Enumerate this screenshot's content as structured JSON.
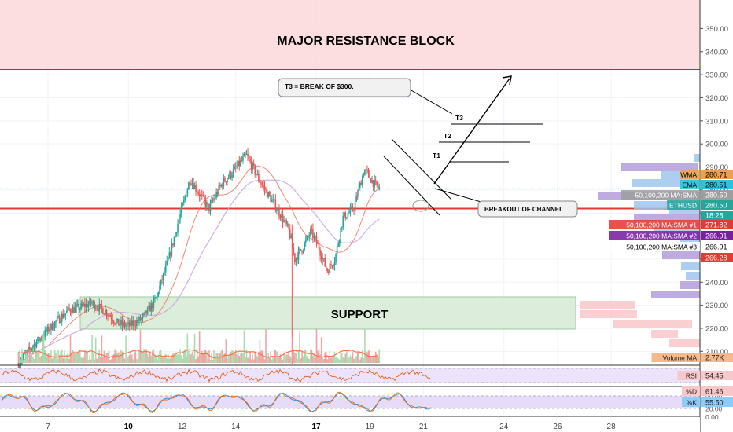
{
  "chart_data": {
    "type": "candlestick",
    "symbol": "ETHUSD",
    "y_axis": {
      "ticks": [
        "350.00",
        "340.00",
        "330.00",
        "320.00",
        "310.00",
        "300.00",
        "290.00",
        "280.00",
        "270.00",
        "260.00",
        "250.00",
        "240.00",
        "230.00",
        "220.00",
        "210.00",
        "200.00"
      ],
      "range": [
        200,
        355
      ]
    },
    "x_axis": {
      "ticks": [
        "7",
        "10",
        "12",
        "14",
        "17",
        "19",
        "21",
        "24",
        "26",
        "28"
      ],
      "bold_ticks": [
        "10",
        "17"
      ],
      "tick_days": [
        7,
        10,
        12,
        14,
        17,
        19,
        21,
        24,
        26,
        28
      ]
    },
    "price_path": [
      [
        5.9,
        205
      ],
      [
        6.4,
        212
      ],
      [
        6.9,
        218
      ],
      [
        7.4,
        224
      ],
      [
        7.8,
        228
      ],
      [
        8.2,
        229
      ],
      [
        8.6,
        231
      ],
      [
        9.2,
        227
      ],
      [
        9.6,
        222
      ],
      [
        10.0,
        221
      ],
      [
        10.5,
        224
      ],
      [
        11.0,
        232
      ],
      [
        11.5,
        250
      ],
      [
        11.9,
        268
      ],
      [
        12.3,
        285
      ],
      [
        12.6,
        279
      ],
      [
        13.0,
        272
      ],
      [
        13.5,
        283
      ],
      [
        13.9,
        288
      ],
      [
        14.4,
        295
      ],
      [
        14.8,
        286
      ],
      [
        15.2,
        278
      ],
      [
        15.5,
        273
      ],
      [
        16.0,
        262
      ],
      [
        16.2,
        250
      ],
      [
        16.5,
        255
      ],
      [
        16.8,
        262
      ],
      [
        17.1,
        255
      ],
      [
        17.4,
        245
      ],
      [
        17.7,
        250
      ],
      [
        18.0,
        268
      ],
      [
        18.4,
        272
      ],
      [
        18.8,
        289
      ],
      [
        19.2,
        282
      ],
      [
        19.4,
        280.5
      ]
    ],
    "series": [
      {
        "name": "WMA",
        "value": "280.71",
        "color": "#f0a04b"
      },
      {
        "name": "EMA",
        "value": "280.51",
        "color": "#26c6da"
      },
      {
        "name": "50,100,200 MA:SMA",
        "value": "280.50",
        "color": "#bdbdbd"
      },
      {
        "name": "ETHUSD",
        "value": "280.50",
        "color": "#26a69a"
      },
      {
        "name": "",
        "value": "18:28",
        "color": "#26a69a"
      },
      {
        "name": "50,100,200 MA:SMA #1",
        "value": "271.82",
        "color": "#e53935"
      },
      {
        "name": "50,100,200 MA:SMA #2",
        "value": "266.91",
        "color": "#7b1fa2"
      },
      {
        "name": "50,100,200 MA:SMA #3",
        "value": "266.91",
        "color": "#ffffff"
      },
      {
        "name": "",
        "value": "266.28",
        "color": "#e53935"
      }
    ],
    "indicator_labels": [
      {
        "name": "Volume MA",
        "value": "2.77K"
      },
      {
        "name": "RSI",
        "value": "54.45"
      },
      {
        "name": "%D",
        "value": "61.46"
      },
      {
        "name": "%K",
        "value": "55.50"
      }
    ],
    "osc_ticks": [
      "80.00",
      "20.00",
      "0.00"
    ],
    "annotations": {
      "resistance_zone": "MAJOR RESISTANCE BLOCK",
      "support_zone": "SUPPORT",
      "callout_t3": "T3 = BREAK OF $300.",
      "callout_breakout": "BREAKOUT OF CHANNEL",
      "targets": [
        "T1",
        "T2",
        "T3"
      ]
    },
    "colors": {
      "up": "#26a69a",
      "down": "#ef5350",
      "resistance_fill": "#fcd9dd",
      "support_fill": "#d6ecd5",
      "volume_profile_blue": "#9fc5ef",
      "volume_profile_purple": "#b39ddb",
      "volume_profile_pink": "#f8c7c9"
    },
    "grid": true
  }
}
